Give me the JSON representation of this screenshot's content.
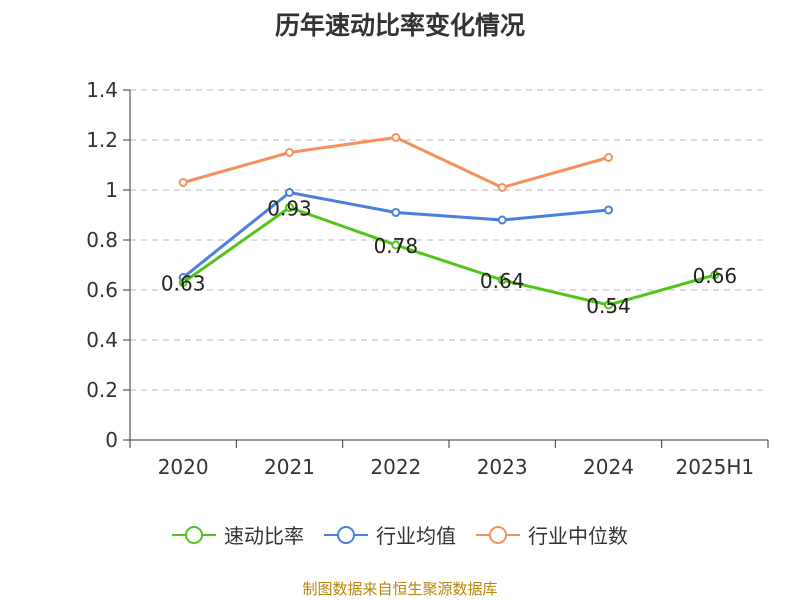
{
  "title": "历年速动比率变化情况",
  "footer": "制图数据来自恒生聚源数据库",
  "chart_data": {
    "type": "line",
    "title": "历年速动比率变化情况",
    "categories": [
      "2020",
      "2021",
      "2022",
      "2023",
      "2024",
      "2025H1"
    ],
    "ylim": [
      0,
      1.4
    ],
    "yticks": [
      0,
      0.2,
      0.4,
      0.6,
      0.8,
      1,
      1.2,
      1.4
    ],
    "ytick_labels": [
      "0",
      "0.2",
      "0.4",
      "0.6",
      "0.8",
      "1",
      "1.2",
      "1.4"
    ],
    "grid": true,
    "legend_position": "bottom",
    "series": [
      {
        "name": "速动比率",
        "color": "#52c41a",
        "values": [
          0.63,
          0.93,
          0.78,
          0.64,
          0.54,
          0.66
        ],
        "labels": [
          "0.63",
          "0.93",
          "0.78",
          "0.64",
          "0.54",
          "0.66"
        ]
      },
      {
        "name": "行业均值",
        "color": "#4a7fdc",
        "values": [
          0.65,
          0.99,
          0.91,
          0.88,
          0.92,
          null
        ]
      },
      {
        "name": "行业中位数",
        "color": "#f4915c",
        "values": [
          1.03,
          1.15,
          1.21,
          1.01,
          1.13,
          null
        ]
      }
    ]
  }
}
